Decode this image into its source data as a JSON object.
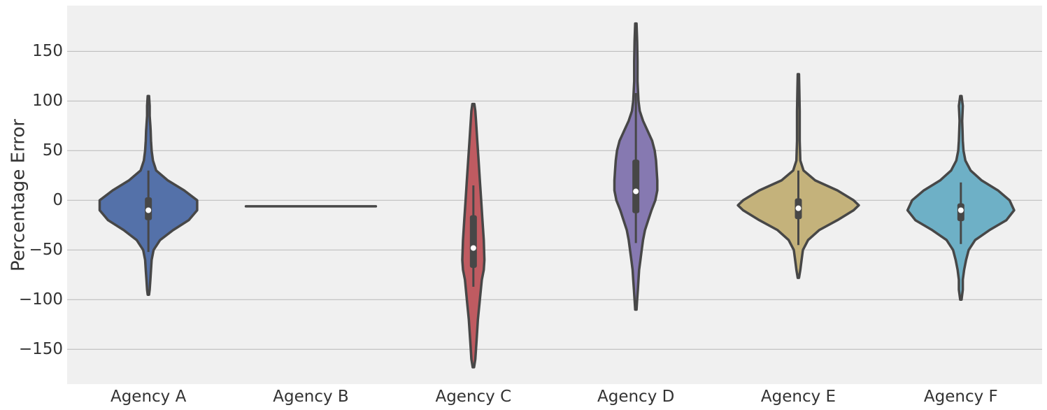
{
  "chart_data": {
    "type": "violin",
    "title": "",
    "xlabel": "",
    "ylabel": "Percentage Error",
    "ylim": [
      -185,
      196
    ],
    "yticks": [
      150,
      100,
      50,
      0,
      -50,
      -100,
      -150
    ],
    "ytick_labels": [
      "150",
      "100",
      "50",
      "0",
      "−50",
      "−100",
      "−150"
    ],
    "grid": "horizontal",
    "background": "#f0f0f0",
    "grid_color": "#b8b8b8",
    "categories": [
      "Agency A",
      "Agency B",
      "Agency C",
      "Agency D",
      "Agency E",
      "Agency F"
    ],
    "series": [
      {
        "category": "Agency A",
        "color": "#5471a9",
        "min": -95,
        "max": 105,
        "median": -10,
        "q1": -20,
        "q3": 3,
        "whisker_low": -52,
        "whisker_high": 30,
        "density": [
          [
            105,
            1
          ],
          [
            95,
            2
          ],
          [
            85,
            2
          ],
          [
            75,
            3
          ],
          [
            70,
            3.5
          ],
          [
            60,
            4
          ],
          [
            50,
            5
          ],
          [
            40,
            7
          ],
          [
            30,
            12
          ],
          [
            20,
            30
          ],
          [
            10,
            55
          ],
          [
            0,
            75
          ],
          [
            -10,
            75
          ],
          [
            -20,
            62
          ],
          [
            -30,
            38
          ],
          [
            -40,
            18
          ],
          [
            -50,
            8
          ],
          [
            -60,
            5
          ],
          [
            -70,
            4
          ],
          [
            -80,
            3
          ],
          [
            -90,
            2
          ],
          [
            -95,
            1
          ]
        ]
      },
      {
        "category": "Agency B",
        "color": "#555555",
        "min": -6,
        "max": -6,
        "median": -6,
        "q1": -6,
        "q3": -6,
        "whisker_low": -6,
        "whisker_high": -6,
        "density": []
      },
      {
        "category": "Agency C",
        "color": "#bf5b61",
        "min": -168,
        "max": 97,
        "median": -48,
        "q1": -68,
        "q3": -15,
        "whisker_low": -87,
        "whisker_high": 15,
        "density": [
          [
            97,
            1.5
          ],
          [
            90,
            3
          ],
          [
            80,
            4
          ],
          [
            60,
            6
          ],
          [
            40,
            8
          ],
          [
            20,
            10
          ],
          [
            0,
            12
          ],
          [
            -20,
            14
          ],
          [
            -40,
            16
          ],
          [
            -60,
            17
          ],
          [
            -70,
            16
          ],
          [
            -80,
            13
          ],
          [
            -100,
            10
          ],
          [
            -120,
            7
          ],
          [
            -140,
            5
          ],
          [
            -160,
            3
          ],
          [
            -168,
            1
          ]
        ]
      },
      {
        "category": "Agency D",
        "color": "#8679b1",
        "min": -110,
        "max": 178,
        "median": 9,
        "q1": -13,
        "q3": 41,
        "whisker_low": -43,
        "whisker_high": 108,
        "density": [
          [
            178,
            1
          ],
          [
            160,
            2
          ],
          [
            140,
            2.5
          ],
          [
            120,
            2.5
          ],
          [
            100,
            4
          ],
          [
            90,
            6
          ],
          [
            80,
            11
          ],
          [
            70,
            18
          ],
          [
            60,
            25
          ],
          [
            50,
            29
          ],
          [
            40,
            31
          ],
          [
            30,
            32
          ],
          [
            20,
            33
          ],
          [
            10,
            33
          ],
          [
            0,
            30
          ],
          [
            -10,
            24
          ],
          [
            -20,
            19
          ],
          [
            -30,
            14
          ],
          [
            -40,
            11
          ],
          [
            -50,
            9
          ],
          [
            -60,
            7
          ],
          [
            -70,
            5
          ],
          [
            -80,
            4
          ],
          [
            -90,
            3
          ],
          [
            -100,
            2
          ],
          [
            -110,
            1
          ]
        ]
      },
      {
        "category": "Agency E",
        "color": "#c4b27b",
        "min": -78,
        "max": 127,
        "median": -8,
        "q1": -19,
        "q3": 2,
        "whisker_low": -45,
        "whisker_high": 30,
        "density": [
          [
            127,
            1
          ],
          [
            110,
            1.5
          ],
          [
            90,
            2
          ],
          [
            80,
            2
          ],
          [
            60,
            2
          ],
          [
            40,
            3
          ],
          [
            30,
            8
          ],
          [
            20,
            26
          ],
          [
            10,
            60
          ],
          [
            0,
            85
          ],
          [
            -5,
            93
          ],
          [
            -10,
            85
          ],
          [
            -20,
            60
          ],
          [
            -30,
            32
          ],
          [
            -40,
            15
          ],
          [
            -50,
            7
          ],
          [
            -60,
            5
          ],
          [
            -70,
            3
          ],
          [
            -78,
            1
          ]
        ]
      },
      {
        "category": "Agency F",
        "color": "#6eb0c6",
        "min": -100,
        "max": 105,
        "median": -10,
        "q1": -21,
        "q3": -3,
        "whisker_low": -44,
        "whisker_high": 18,
        "density": [
          [
            105,
            1
          ],
          [
            95,
            3
          ],
          [
            88,
            2.5
          ],
          [
            80,
            2
          ],
          [
            70,
            2.5
          ],
          [
            60,
            3
          ],
          [
            50,
            4
          ],
          [
            40,
            7
          ],
          [
            30,
            15
          ],
          [
            20,
            32
          ],
          [
            10,
            57
          ],
          [
            0,
            75
          ],
          [
            -10,
            82
          ],
          [
            -20,
            70
          ],
          [
            -30,
            44
          ],
          [
            -40,
            22
          ],
          [
            -50,
            12
          ],
          [
            -60,
            8
          ],
          [
            -70,
            5
          ],
          [
            -80,
            3
          ],
          [
            -90,
            3
          ],
          [
            -100,
            1
          ]
        ]
      }
    ]
  }
}
